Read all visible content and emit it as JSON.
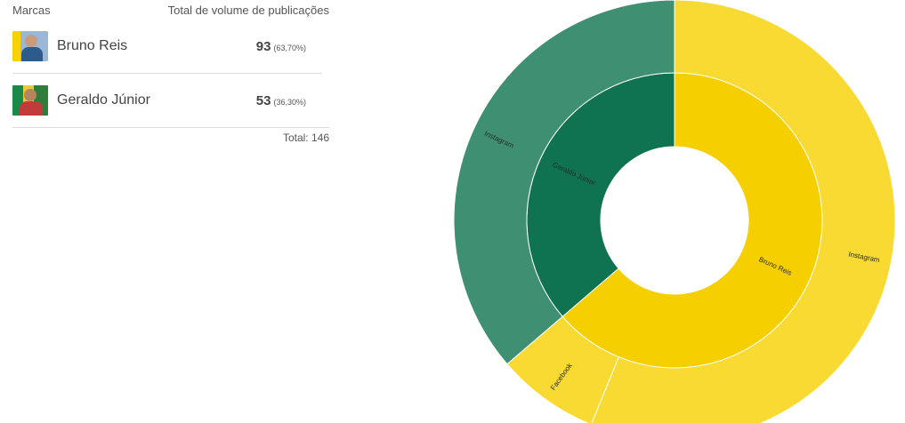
{
  "table": {
    "header_brand": "Marcas",
    "header_total": "Total de volume de publicações",
    "rows": [
      {
        "name": "Bruno Reis",
        "value": "93",
        "pct": "(63,70%)",
        "avatar_icon": "person-photo-icon"
      },
      {
        "name": "Geraldo Júnior",
        "value": "53",
        "pct": "(36,30%)",
        "avatar_icon": "person-photo-icon"
      }
    ],
    "total": "Total: 146"
  },
  "chart_data": {
    "type": "sunburst",
    "center": [
      758,
      248
    ],
    "inner": [
      {
        "name": "Bruno Reis",
        "value": 93,
        "color": "#f6cf00"
      },
      {
        "name": "Geraldo Júnior",
        "value": 53,
        "color": "#0f7250"
      }
    ],
    "outer": [
      {
        "parent": "Bruno Reis",
        "name": "Instagram",
        "value": 82,
        "color": "#f8da33"
      },
      {
        "parent": "Bruno Reis",
        "name": "Facebook",
        "value": 11,
        "color": "#f8da33"
      },
      {
        "parent": "Geraldo Júnior",
        "name": "Instagram",
        "value": 53,
        "color": "#3f8f73"
      }
    ]
  }
}
